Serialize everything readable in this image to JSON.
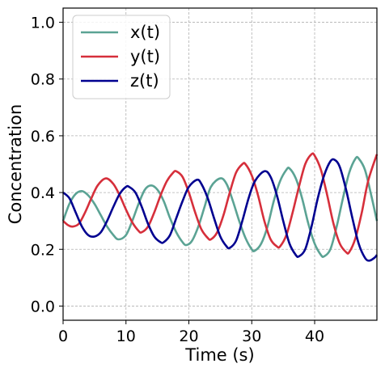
{
  "chart_data": {
    "type": "line",
    "title": "",
    "xlabel": "Time (s)",
    "ylabel": "Concentration",
    "xlim": [
      0,
      49.9
    ],
    "ylim": [
      -0.05,
      1.05
    ],
    "xticks": [
      0,
      10,
      20,
      30,
      40
    ],
    "xtick_labels": [
      "0",
      "10",
      "20",
      "30",
      "40"
    ],
    "yticks": [
      0.0,
      0.2,
      0.4,
      0.6,
      0.8,
      1.0
    ],
    "ytick_labels": [
      "0.0",
      "0.2",
      "0.4",
      "0.6",
      "0.8",
      "1.0"
    ],
    "grid": true,
    "legend_position": "top-left",
    "series": [
      {
        "name": "x(t)",
        "color": "#5ba394",
        "points": [
          [
            0,
            0.3
          ],
          [
            1,
            0.36
          ],
          [
            2,
            0.395
          ],
          [
            3,
            0.405
          ],
          [
            4,
            0.39
          ],
          [
            5,
            0.36
          ],
          [
            6,
            0.32
          ],
          [
            7,
            0.28
          ],
          [
            8,
            0.25
          ],
          [
            8.8,
            0.235
          ],
          [
            10,
            0.25
          ],
          [
            11,
            0.3
          ],
          [
            12,
            0.36
          ],
          [
            13,
            0.41
          ],
          [
            14,
            0.425
          ],
          [
            15,
            0.41
          ],
          [
            16,
            0.37
          ],
          [
            17,
            0.31
          ],
          [
            18,
            0.26
          ],
          [
            19,
            0.225
          ],
          [
            19.6,
            0.215
          ],
          [
            20.5,
            0.23
          ],
          [
            21.5,
            0.28
          ],
          [
            22.5,
            0.35
          ],
          [
            23.5,
            0.42
          ],
          [
            25,
            0.45
          ],
          [
            26,
            0.43
          ],
          [
            27,
            0.37
          ],
          [
            28,
            0.3
          ],
          [
            29,
            0.24
          ],
          [
            30,
            0.2
          ],
          [
            30.5,
            0.195
          ],
          [
            31.5,
            0.22
          ],
          [
            32.5,
            0.28
          ],
          [
            33.5,
            0.37
          ],
          [
            34.5,
            0.44
          ],
          [
            35.5,
            0.48
          ],
          [
            36,
            0.485
          ],
          [
            37,
            0.45
          ],
          [
            38,
            0.38
          ],
          [
            39,
            0.29
          ],
          [
            40,
            0.22
          ],
          [
            41,
            0.18
          ],
          [
            41.5,
            0.175
          ],
          [
            42.5,
            0.2
          ],
          [
            43.5,
            0.28
          ],
          [
            44.5,
            0.38
          ],
          [
            45.5,
            0.47
          ],
          [
            46.5,
            0.52
          ],
          [
            47,
            0.52
          ],
          [
            48,
            0.48
          ],
          [
            49,
            0.39
          ],
          [
            49.9,
            0.3
          ]
        ]
      },
      {
        "name": "y(t)",
        "color": "#d62f3b",
        "points": [
          [
            0,
            0.3
          ],
          [
            0.8,
            0.285
          ],
          [
            1.5,
            0.28
          ],
          [
            2.5,
            0.29
          ],
          [
            3.5,
            0.33
          ],
          [
            4.5,
            0.38
          ],
          [
            5.5,
            0.425
          ],
          [
            6.8,
            0.45
          ],
          [
            8,
            0.43
          ],
          [
            9,
            0.39
          ],
          [
            10,
            0.34
          ],
          [
            11,
            0.295
          ],
          [
            12,
            0.265
          ],
          [
            12.5,
            0.26
          ],
          [
            13.5,
            0.28
          ],
          [
            14.5,
            0.33
          ],
          [
            15.5,
            0.39
          ],
          [
            16.5,
            0.44
          ],
          [
            17.5,
            0.47
          ],
          [
            18,
            0.475
          ],
          [
            19,
            0.455
          ],
          [
            20,
            0.4
          ],
          [
            21,
            0.33
          ],
          [
            22,
            0.27
          ],
          [
            23,
            0.24
          ],
          [
            23.5,
            0.235
          ],
          [
            24.5,
            0.26
          ],
          [
            25.5,
            0.32
          ],
          [
            26.5,
            0.4
          ],
          [
            27.5,
            0.47
          ],
          [
            28.5,
            0.5
          ],
          [
            29,
            0.5
          ],
          [
            30,
            0.46
          ],
          [
            31,
            0.39
          ],
          [
            32,
            0.3
          ],
          [
            33,
            0.235
          ],
          [
            34,
            0.21
          ],
          [
            34.5,
            0.21
          ],
          [
            35.5,
            0.25
          ],
          [
            36.5,
            0.33
          ],
          [
            37.5,
            0.42
          ],
          [
            38.5,
            0.5
          ],
          [
            39.5,
            0.535
          ],
          [
            40,
            0.53
          ],
          [
            41,
            0.48
          ],
          [
            42,
            0.39
          ],
          [
            43,
            0.29
          ],
          [
            44,
            0.22
          ],
          [
            45,
            0.19
          ],
          [
            45.5,
            0.19
          ],
          [
            46.5,
            0.24
          ],
          [
            47.5,
            0.33
          ],
          [
            48.5,
            0.44
          ],
          [
            49.9,
            0.535
          ]
        ]
      },
      {
        "name": "z(t)",
        "color": "#000090",
        "points": [
          [
            0,
            0.4
          ],
          [
            1,
            0.38
          ],
          [
            2,
            0.33
          ],
          [
            3,
            0.28
          ],
          [
            4,
            0.25
          ],
          [
            5,
            0.245
          ],
          [
            6,
            0.26
          ],
          [
            7,
            0.3
          ],
          [
            8,
            0.35
          ],
          [
            9,
            0.395
          ],
          [
            10,
            0.42
          ],
          [
            10.5,
            0.42
          ],
          [
            11.5,
            0.4
          ],
          [
            12.5,
            0.35
          ],
          [
            13.5,
            0.29
          ],
          [
            14.5,
            0.245
          ],
          [
            15.5,
            0.225
          ],
          [
            16,
            0.225
          ],
          [
            17,
            0.25
          ],
          [
            18,
            0.31
          ],
          [
            19,
            0.37
          ],
          [
            20,
            0.42
          ],
          [
            21.3,
            0.445
          ],
          [
            22,
            0.43
          ],
          [
            23,
            0.38
          ],
          [
            24,
            0.31
          ],
          [
            25,
            0.245
          ],
          [
            26,
            0.21
          ],
          [
            26.5,
            0.205
          ],
          [
            27.5,
            0.23
          ],
          [
            28.5,
            0.3
          ],
          [
            29.5,
            0.38
          ],
          [
            30.5,
            0.44
          ],
          [
            32,
            0.475
          ],
          [
            33,
            0.455
          ],
          [
            34,
            0.39
          ],
          [
            35,
            0.3
          ],
          [
            36,
            0.22
          ],
          [
            37,
            0.18
          ],
          [
            37.5,
            0.175
          ],
          [
            38.5,
            0.2
          ],
          [
            39.5,
            0.28
          ],
          [
            40.5,
            0.38
          ],
          [
            41.5,
            0.46
          ],
          [
            42.5,
            0.51
          ],
          [
            43.2,
            0.515
          ],
          [
            44,
            0.49
          ],
          [
            45,
            0.41
          ],
          [
            46,
            0.31
          ],
          [
            47,
            0.22
          ],
          [
            48,
            0.17
          ],
          [
            48.7,
            0.16
          ],
          [
            49.5,
            0.17
          ],
          [
            49.9,
            0.18
          ]
        ]
      }
    ]
  }
}
